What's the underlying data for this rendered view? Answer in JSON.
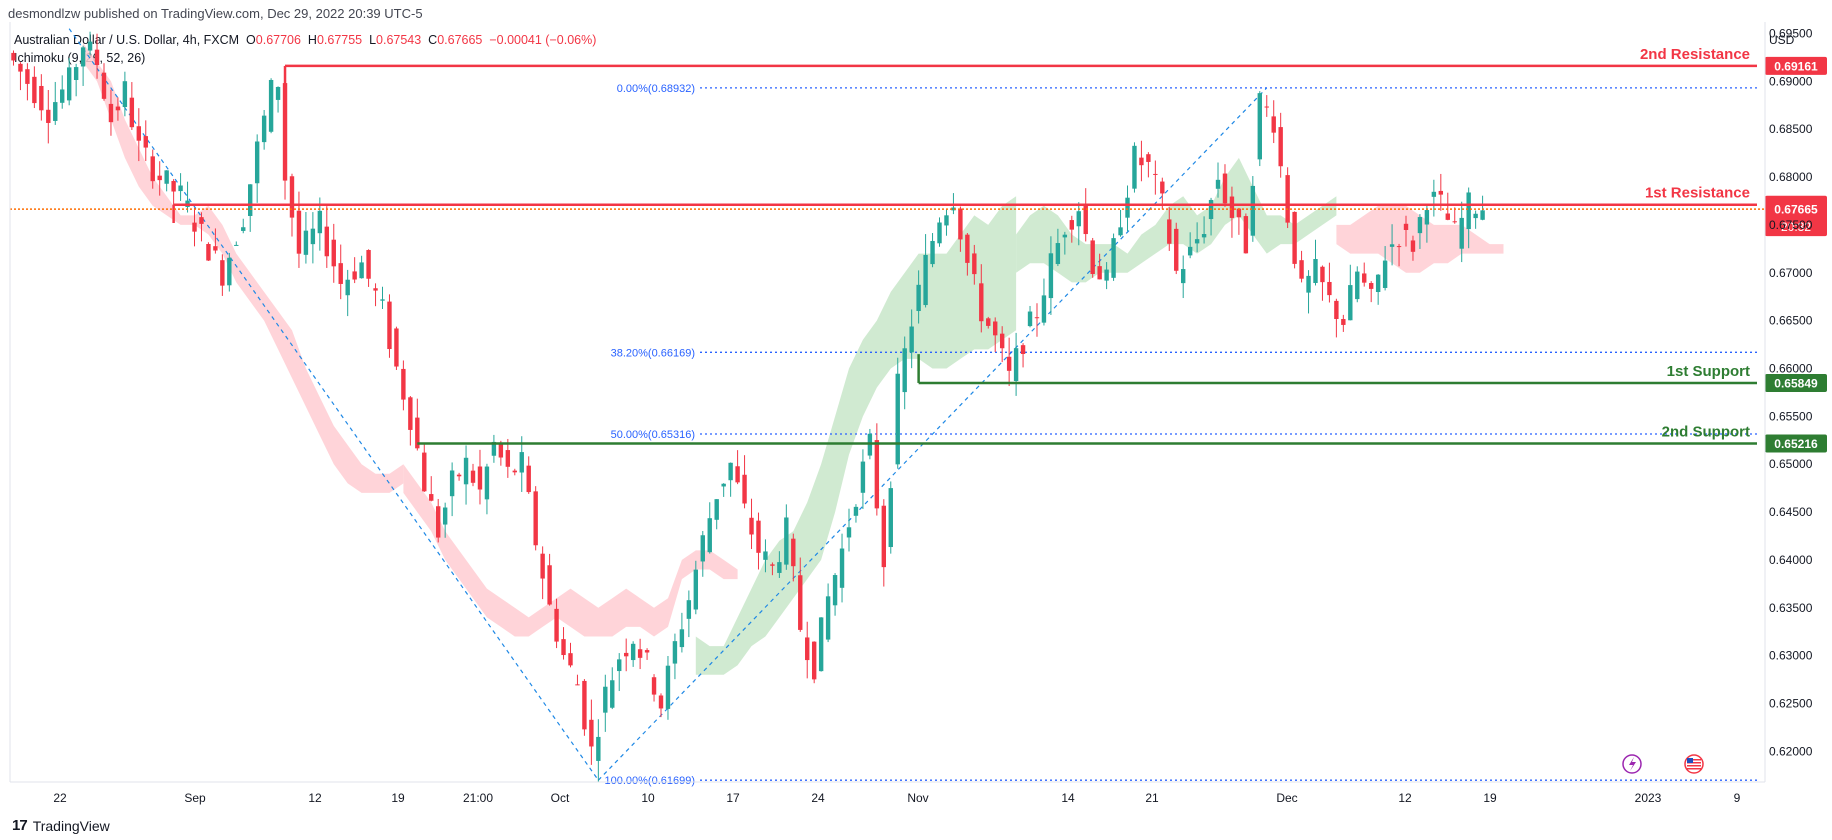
{
  "header": {
    "published_line": "desmondlzw published on TradingView.com, Dec 29, 2022 20:39 UTC-5",
    "symbol_title": "Australian Dollar / U.S. Dollar, 4h, FXCM",
    "o_label": "O",
    "o_value": "0.67706",
    "h_label": "H",
    "h_value": "0.67755",
    "l_label": "L",
    "l_value": "0.67543",
    "c_label": "C",
    "c_value": "0.67665",
    "change": "−0.00041 (−0.06%)",
    "indicator": "Ichimoku (9, 26, 52, 26)"
  },
  "footer": {
    "brand": "TradingView",
    "logo": "17"
  },
  "colors": {
    "up": "#26a69a",
    "down": "#f23645",
    "resistance": "#f23645",
    "support": "#2e7d32",
    "cloud_bear": "#ffcdd2",
    "cloud_bull": "#c8e6c9",
    "fib": "#2962ff",
    "trend": "#1e88e5"
  },
  "chart_data": {
    "type": "candlestick",
    "currency": "USD",
    "ylim": [
      0.6168,
      0.6962
    ],
    "y_ticks": [
      "0.69500",
      "0.69000",
      "0.68500",
      "0.68000",
      "0.67500",
      "0.67000",
      "0.66500",
      "0.66000",
      "0.65500",
      "0.65000",
      "0.64500",
      "0.64000",
      "0.63500",
      "0.63000",
      "0.62500",
      "0.62000"
    ],
    "x_ticks": [
      "22",
      "Sep",
      "12",
      "19",
      "21:00",
      "Oct",
      "10",
      "17",
      "24",
      "Nov",
      "14",
      "21",
      "Dec",
      "12",
      "19",
      "2023",
      "9"
    ],
    "levels": [
      {
        "name": "2nd Resistance",
        "value": "0.69161",
        "kind": "resistance"
      },
      {
        "name": "1st Resistance",
        "value": "0.67711",
        "kind": "resistance"
      },
      {
        "name": "1st Support",
        "value": "0.65849",
        "kind": "support"
      },
      {
        "name": "2nd Support",
        "value": "0.65216",
        "kind": "support"
      }
    ],
    "fib_levels": [
      {
        "label": "0.00%(0.68932)",
        "value": 0.68932
      },
      {
        "label": "38.20%(0.66169)",
        "value": 0.66169
      },
      {
        "label": "50.00%(0.65316)",
        "value": 0.65316
      },
      {
        "label": "100.00%(0.61699)",
        "value": 0.61699
      }
    ],
    "last_price": "0.67665",
    "countdown": "20:32",
    "price_path": [
      [
        0,
        0.693
      ],
      [
        3,
        0.69
      ],
      [
        6,
        0.687
      ],
      [
        9,
        0.69
      ],
      [
        11,
        0.694
      ],
      [
        13,
        0.692
      ],
      [
        15,
        0.686
      ],
      [
        17,
        0.689
      ],
      [
        19,
        0.683
      ],
      [
        22,
        0.68
      ],
      [
        25,
        0.678
      ],
      [
        28,
        0.674
      ],
      [
        31,
        0.67
      ],
      [
        34,
        0.676
      ],
      [
        36,
        0.683
      ],
      [
        38,
        0.689
      ],
      [
        39,
        0.69
      ],
      [
        40,
        0.68
      ],
      [
        42,
        0.672
      ],
      [
        45,
        0.675
      ],
      [
        48,
        0.669
      ],
      [
        51,
        0.671
      ],
      [
        54,
        0.666
      ],
      [
        56,
        0.66
      ],
      [
        58,
        0.655
      ],
      [
        60,
        0.648
      ],
      [
        62,
        0.643
      ],
      [
        64,
        0.648
      ],
      [
        66,
        0.65
      ],
      [
        68,
        0.647
      ],
      [
        70,
        0.652
      ],
      [
        72,
        0.649
      ],
      [
        74,
        0.65
      ],
      [
        76,
        0.642
      ],
      [
        78,
        0.635
      ],
      [
        80,
        0.63
      ],
      [
        82,
        0.627
      ],
      [
        84,
        0.62
      ],
      [
        86,
        0.626
      ],
      [
        88,
        0.63
      ],
      [
        90,
        0.632
      ],
      [
        92,
        0.629
      ],
      [
        94,
        0.625
      ],
      [
        96,
        0.631
      ],
      [
        98,
        0.636
      ],
      [
        100,
        0.642
      ],
      [
        102,
        0.647
      ],
      [
        104,
        0.65
      ],
      [
        106,
        0.645
      ],
      [
        108,
        0.641
      ],
      [
        110,
        0.639
      ],
      [
        112,
        0.643
      ],
      [
        114,
        0.633
      ],
      [
        116,
        0.629
      ],
      [
        118,
        0.636
      ],
      [
        120,
        0.641
      ],
      [
        122,
        0.647
      ],
      [
        124,
        0.652
      ],
      [
        126,
        0.64
      ],
      [
        128,
        0.658
      ],
      [
        130,
        0.665
      ],
      [
        132,
        0.671
      ],
      [
        134,
        0.676
      ],
      [
        136,
        0.678
      ],
      [
        138,
        0.671
      ],
      [
        140,
        0.666
      ],
      [
        142,
        0.663
      ],
      [
        144,
        0.659
      ],
      [
        146,
        0.663
      ],
      [
        148,
        0.666
      ],
      [
        150,
        0.671
      ],
      [
        152,
        0.675
      ],
      [
        154,
        0.677
      ],
      [
        156,
        0.671
      ],
      [
        158,
        0.669
      ],
      [
        160,
        0.676
      ],
      [
        162,
        0.682
      ],
      [
        164,
        0.681
      ],
      [
        166,
        0.677
      ],
      [
        168,
        0.67
      ],
      [
        170,
        0.672
      ],
      [
        172,
        0.675
      ],
      [
        174,
        0.68
      ],
      [
        176,
        0.676
      ],
      [
        178,
        0.673
      ],
      [
        180,
        0.688
      ],
      [
        182,
        0.686
      ],
      [
        184,
        0.676
      ],
      [
        186,
        0.668
      ],
      [
        188,
        0.67
      ],
      [
        190,
        0.667
      ],
      [
        192,
        0.665
      ],
      [
        194,
        0.67
      ],
      [
        196,
        0.667
      ],
      [
        198,
        0.672
      ],
      [
        200,
        0.674
      ],
      [
        202,
        0.673
      ],
      [
        204,
        0.678
      ],
      [
        206,
        0.677
      ],
      [
        208,
        0.674
      ],
      [
        210,
        0.677
      ],
      [
        211,
        0.677
      ]
    ],
    "cloud": [
      {
        "from": 10,
        "to": 56,
        "top": [
          0.694,
          0.692,
          0.69,
          0.686,
          0.683,
          0.68,
          0.678,
          0.676,
          0.676,
          0.677,
          0.675,
          0.672,
          0.67,
          0.668,
          0.666,
          0.664,
          0.66,
          0.657,
          0.654,
          0.652,
          0.65,
          0.649,
          0.649,
          0.65
        ],
        "bottom": [
          0.692,
          0.69,
          0.686,
          0.682,
          0.679,
          0.677,
          0.676,
          0.675,
          0.675,
          0.674,
          0.672,
          0.669,
          0.667,
          0.665,
          0.662,
          0.659,
          0.656,
          0.653,
          0.65,
          0.648,
          0.647,
          0.647,
          0.647,
          0.648
        ],
        "kind": "bear"
      },
      {
        "from": 56,
        "to": 104,
        "top": [
          0.65,
          0.648,
          0.646,
          0.643,
          0.641,
          0.639,
          0.637,
          0.636,
          0.635,
          0.634,
          0.635,
          0.636,
          0.637,
          0.636,
          0.635,
          0.636,
          0.637,
          0.636,
          0.635,
          0.636,
          0.64,
          0.641,
          0.641,
          0.64,
          0.639
        ],
        "bottom": [
          0.647,
          0.645,
          0.643,
          0.64,
          0.638,
          0.636,
          0.634,
          0.633,
          0.632,
          0.632,
          0.633,
          0.634,
          0.633,
          0.632,
          0.632,
          0.632,
          0.633,
          0.633,
          0.632,
          0.633,
          0.638,
          0.639,
          0.639,
          0.638,
          0.638
        ],
        "kind": "bear"
      },
      {
        "from": 98,
        "to": 144,
        "top": [
          0.632,
          0.631,
          0.631,
          0.634,
          0.637,
          0.64,
          0.642,
          0.643,
          0.646,
          0.65,
          0.655,
          0.66,
          0.663,
          0.665,
          0.668,
          0.67,
          0.672,
          0.672,
          0.672,
          0.674,
          0.676,
          0.675,
          0.677,
          0.678
        ],
        "bottom": [
          0.628,
          0.628,
          0.628,
          0.629,
          0.631,
          0.632,
          0.634,
          0.636,
          0.638,
          0.64,
          0.645,
          0.651,
          0.655,
          0.658,
          0.66,
          0.661,
          0.661,
          0.66,
          0.66,
          0.661,
          0.662,
          0.662,
          0.663,
          0.664
        ],
        "kind": "bull"
      },
      {
        "from": 144,
        "to": 190,
        "top": [
          0.674,
          0.676,
          0.677,
          0.676,
          0.674,
          0.673,
          0.673,
          0.673,
          0.672,
          0.674,
          0.675,
          0.677,
          0.678,
          0.676,
          0.677,
          0.68,
          0.682,
          0.679,
          0.676,
          0.676,
          0.675,
          0.676,
          0.677,
          0.678
        ],
        "bottom": [
          0.67,
          0.671,
          0.671,
          0.67,
          0.669,
          0.669,
          0.67,
          0.67,
          0.67,
          0.671,
          0.672,
          0.673,
          0.673,
          0.672,
          0.673,
          0.675,
          0.676,
          0.674,
          0.672,
          0.673,
          0.673,
          0.674,
          0.675,
          0.676
        ],
        "kind": "bull"
      },
      {
        "from": 190,
        "to": 214,
        "top": [
          0.675,
          0.675,
          0.676,
          0.677,
          0.677,
          0.677,
          0.676,
          0.675,
          0.675,
          0.675,
          0.674,
          0.673,
          0.673
        ],
        "bottom": [
          0.673,
          0.672,
          0.672,
          0.672,
          0.671,
          0.67,
          0.67,
          0.671,
          0.671,
          0.672,
          0.672,
          0.672,
          0.672
        ],
        "kind": "bear"
      }
    ]
  }
}
